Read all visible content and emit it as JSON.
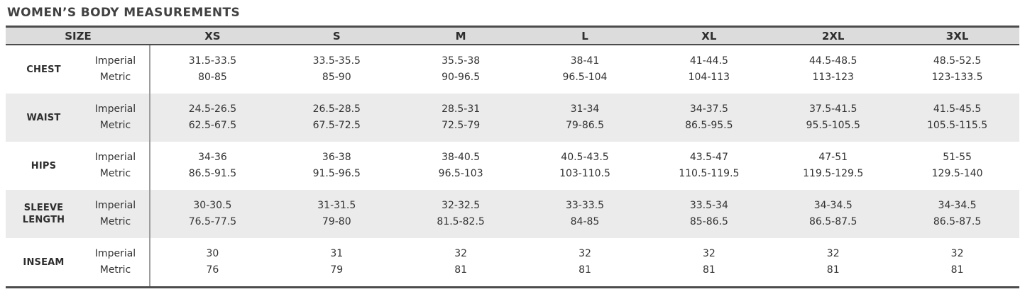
{
  "title": "WOMEN’S BODY MEASUREMENTS",
  "colors": {
    "header_bg": "#dcdcdc",
    "alt_row_bg": "#ebebeb",
    "border_dark": "#4c4c4c",
    "divider_gray": "#9c9c9c",
    "text": "#333333"
  },
  "table": {
    "size_header": "SIZE",
    "size_labels": [
      "XS",
      "S",
      "M",
      "L",
      "XL",
      "2XL",
      "3XL"
    ],
    "units": [
      "Imperial",
      "Metric"
    ],
    "rows": [
      {
        "label": "CHEST",
        "imperial": [
          "31.5-33.5",
          "33.5-35.5",
          "35.5-38",
          "38-41",
          "41-44.5",
          "44.5-48.5",
          "48.5-52.5"
        ],
        "metric": [
          "80-85",
          "85-90",
          "90-96.5",
          "96.5-104",
          "104-113",
          "113-123",
          "123-133.5"
        ]
      },
      {
        "label": "WAIST",
        "imperial": [
          "24.5-26.5",
          "26.5-28.5",
          "28.5-31",
          "31-34",
          "34-37.5",
          "37.5-41.5",
          "41.5-45.5"
        ],
        "metric": [
          "62.5-67.5",
          "67.5-72.5",
          "72.5-79",
          "79-86.5",
          "86.5-95.5",
          "95.5-105.5",
          "105.5-115.5"
        ]
      },
      {
        "label": "HIPS",
        "imperial": [
          "34-36",
          "36-38",
          "38-40.5",
          "40.5-43.5",
          "43.5-47",
          "47-51",
          "51-55"
        ],
        "metric": [
          "86.5-91.5",
          "91.5-96.5",
          "96.5-103",
          "103-110.5",
          "110.5-119.5",
          "119.5-129.5",
          "129.5-140"
        ]
      },
      {
        "label": "SLEEVE LENGTH",
        "imperial": [
          "30-30.5",
          "31-31.5",
          "32-32.5",
          "33-33.5",
          "33.5-34",
          "34-34.5",
          "34-34.5"
        ],
        "metric": [
          "76.5-77.5",
          "79-80",
          "81.5-82.5",
          "84-85",
          "85-86.5",
          "86.5-87.5",
          "86.5-87.5"
        ]
      },
      {
        "label": "INSEAM",
        "imperial": [
          "30",
          "31",
          "32",
          "32",
          "32",
          "32",
          "32"
        ],
        "metric": [
          "76",
          "79",
          "81",
          "81",
          "81",
          "81",
          "81"
        ]
      }
    ]
  },
  "chart_data": {
    "type": "table",
    "title": "WOMEN’S BODY MEASUREMENTS",
    "columns": [
      "SIZE",
      "XS",
      "S",
      "M",
      "L",
      "XL",
      "2XL",
      "3XL"
    ],
    "rows": [
      {
        "measurement": "CHEST",
        "unit": "Imperial",
        "values": [
          "31.5-33.5",
          "33.5-35.5",
          "35.5-38",
          "38-41",
          "41-44.5",
          "44.5-48.5",
          "48.5-52.5"
        ]
      },
      {
        "measurement": "CHEST",
        "unit": "Metric",
        "values": [
          "80-85",
          "85-90",
          "90-96.5",
          "96.5-104",
          "104-113",
          "113-123",
          "123-133.5"
        ]
      },
      {
        "measurement": "WAIST",
        "unit": "Imperial",
        "values": [
          "24.5-26.5",
          "26.5-28.5",
          "28.5-31",
          "31-34",
          "34-37.5",
          "37.5-41.5",
          "41.5-45.5"
        ]
      },
      {
        "measurement": "WAIST",
        "unit": "Metric",
        "values": [
          "62.5-67.5",
          "67.5-72.5",
          "72.5-79",
          "79-86.5",
          "86.5-95.5",
          "95.5-105.5",
          "105.5-115.5"
        ]
      },
      {
        "measurement": "HIPS",
        "unit": "Imperial",
        "values": [
          "34-36",
          "36-38",
          "38-40.5",
          "40.5-43.5",
          "43.5-47",
          "47-51",
          "51-55"
        ]
      },
      {
        "measurement": "HIPS",
        "unit": "Metric",
        "values": [
          "86.5-91.5",
          "91.5-96.5",
          "96.5-103",
          "103-110.5",
          "110.5-119.5",
          "119.5-129.5",
          "129.5-140"
        ]
      },
      {
        "measurement": "SLEEVE LENGTH",
        "unit": "Imperial",
        "values": [
          "30-30.5",
          "31-31.5",
          "32-32.5",
          "33-33.5",
          "33.5-34",
          "34-34.5",
          "34-34.5"
        ]
      },
      {
        "measurement": "SLEEVE LENGTH",
        "unit": "Metric",
        "values": [
          "76.5-77.5",
          "79-80",
          "81.5-82.5",
          "84-85",
          "85-86.5",
          "86.5-87.5",
          "86.5-87.5"
        ]
      },
      {
        "measurement": "INSEAM",
        "unit": "Imperial",
        "values": [
          "30",
          "31",
          "32",
          "32",
          "32",
          "32",
          "32"
        ]
      },
      {
        "measurement": "INSEAM",
        "unit": "Metric",
        "values": [
          "76",
          "79",
          "81",
          "81",
          "81",
          "81",
          "81"
        ]
      }
    ]
  }
}
